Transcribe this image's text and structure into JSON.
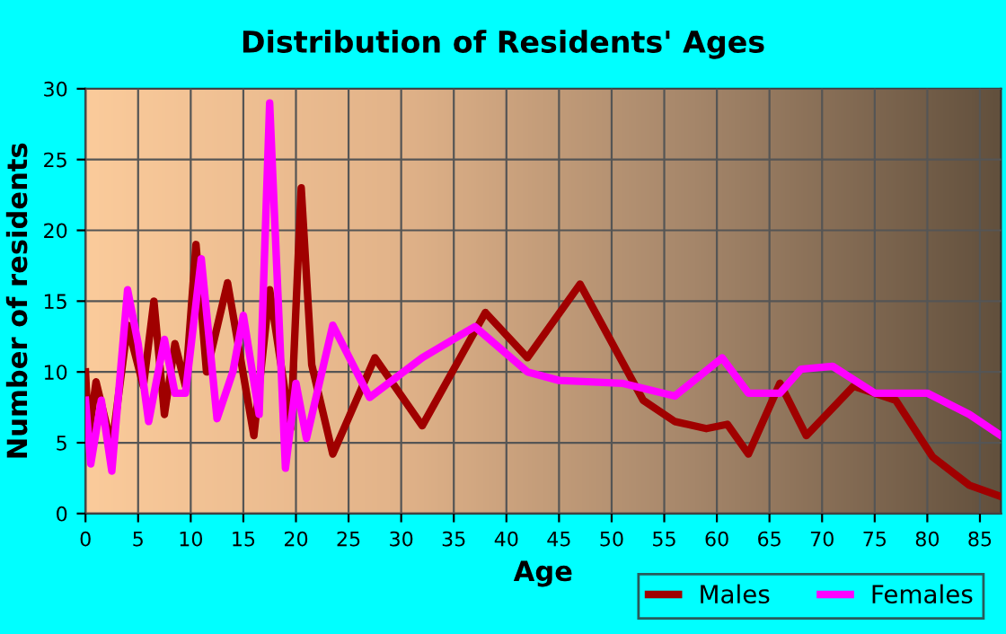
{
  "chart_data": {
    "type": "line",
    "title": "Distribution of Residents' Ages",
    "xlabel": "Age",
    "ylabel": "Number of residents",
    "xlim": [
      0,
      87
    ],
    "xticks": [
      0,
      5,
      10,
      15,
      20,
      25,
      30,
      35,
      40,
      45,
      50,
      55,
      60,
      65,
      70,
      75,
      80,
      85
    ],
    "ylim": [
      0,
      30
    ],
    "yticks": [
      0,
      5,
      10,
      15,
      20,
      25,
      30
    ],
    "grid": true,
    "legend": "bottom right",
    "series": [
      {
        "name": "Males",
        "color": "#a00000",
        "x": [
          0,
          0.3,
          1,
          2.5,
          4,
          5.5,
          6.5,
          7.5,
          8.5,
          9.5,
          10.5,
          11.5,
          13.5,
          16,
          17.5,
          19.5,
          20.5,
          21.5,
          23.5,
          27.5,
          32,
          38,
          42,
          47,
          53,
          56,
          59,
          61,
          63,
          66,
          68.5,
          73,
          77,
          80.5,
          84,
          87
        ],
        "values": [
          10,
          5.5,
          9.3,
          4.7,
          13.3,
          9,
          15,
          7,
          12,
          9,
          19,
          10,
          16.3,
          5.5,
          15.8,
          6,
          23,
          10.5,
          4.2,
          11,
          6.2,
          14.2,
          11,
          16.2,
          8,
          6.5,
          6,
          6.3,
          4.2,
          9.2,
          5.5,
          9,
          8,
          4,
          2,
          1.2
        ]
      },
      {
        "name": "Females",
        "color": "#ff00ff",
        "x": [
          0,
          0.5,
          1.5,
          2.5,
          4,
          5,
          6,
          7.5,
          8.5,
          9.5,
          11,
          12.5,
          14,
          15,
          16.5,
          17.5,
          19,
          20,
          21,
          23.5,
          27,
          32,
          37,
          42,
          45,
          51,
          56,
          60.5,
          63,
          66,
          68,
          71,
          75,
          80,
          84,
          87
        ],
        "values": [
          8,
          3.5,
          8,
          3,
          15.8,
          12,
          6.5,
          12.3,
          8.5,
          8.5,
          18,
          6.7,
          10,
          14,
          7,
          29,
          3.2,
          9.2,
          5.3,
          13.3,
          8.2,
          11,
          13.2,
          10,
          9.4,
          9.2,
          8.3,
          11,
          8.5,
          8.5,
          10.2,
          10.4,
          8.5,
          8.5,
          7,
          5.5
        ]
      }
    ]
  }
}
